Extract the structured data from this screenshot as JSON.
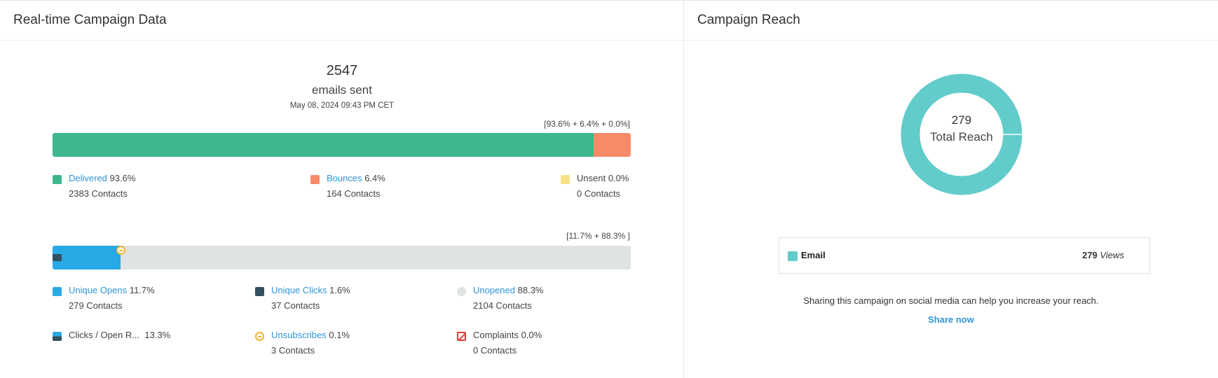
{
  "left_panel": {
    "title": "Real-time Campaign Data",
    "sent": {
      "count": "2547",
      "label": "emails sent",
      "date": "May 08, 2024 09:43 PM CET"
    },
    "delivery_bar": {
      "caption": "[93.6% + 6.4% + 0.0%]",
      "segments": [
        {
          "name": "Delivered",
          "percent": 93.6,
          "color": "#3db78b"
        },
        {
          "name": "Bounces",
          "percent": 6.4,
          "color": "#f88a68"
        },
        {
          "name": "Unsent",
          "percent": 0.0,
          "color": "#f7e085"
        }
      ]
    },
    "delivery_legend": {
      "delivered": {
        "label": "Delivered",
        "value": "93.6%",
        "contacts": "2383 Contacts",
        "color": "#3db78b"
      },
      "bounces": {
        "label": "Bounces",
        "value": "6.4%",
        "contacts": "164 Contacts",
        "color": "#f88a68"
      },
      "unsent": {
        "label": "Unsent",
        "value": "0.0%",
        "contacts": "0 Contacts",
        "color": "#f7e085"
      }
    },
    "engagement_bar": {
      "caption": "[11.7% + 88.3% ]",
      "segments": [
        {
          "name": "Unique Opens",
          "percent": 11.7,
          "color": "#27a9e6"
        },
        {
          "name": "Unopened",
          "percent": 88.3,
          "color": "#e0e3e4"
        }
      ],
      "clicks_percent": 1.6,
      "clicks_color": "#33505f"
    },
    "engagement_legend": {
      "unique_opens": {
        "label": "Unique Opens",
        "value": "11.7%",
        "contacts": "279 Contacts",
        "color": "#27a9e6"
      },
      "unique_clicks": {
        "label": "Unique Clicks",
        "value": "1.6%",
        "contacts": "37 Contacts",
        "color": "#33505f"
      },
      "unopened": {
        "label": "Unopened",
        "value": "88.3%",
        "contacts": "2104 Contacts",
        "color": "#e0e3e4"
      },
      "ctor": {
        "label": "Clicks / Open R...",
        "value": "13.3%"
      },
      "unsubscribes": {
        "label": "Unsubscribes",
        "value": "0.1%",
        "contacts": "3 Contacts"
      },
      "complaints": {
        "label": "Complaints",
        "value": "0.0%",
        "contacts": "0 Contacts"
      }
    }
  },
  "right_panel": {
    "title": "Campaign Reach",
    "donut": {
      "total": "279",
      "label": "Total Reach",
      "color": "#62cccb"
    },
    "reach_rows": [
      {
        "channel": "Email",
        "count": "279",
        "unit": "Views"
      }
    ],
    "share_text": "Sharing this campaign on social media can help you increase your reach.",
    "share_link": "Share now"
  }
}
